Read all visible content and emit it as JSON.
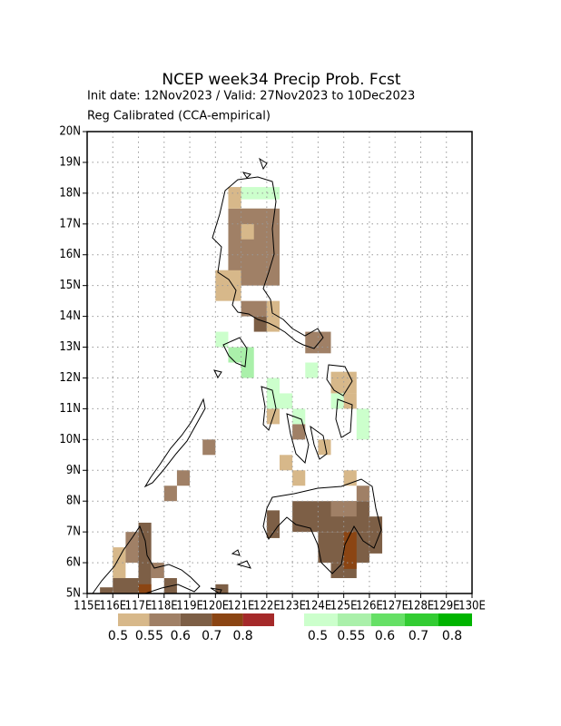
{
  "chart_data": {
    "type": "map",
    "title": "NCEP week34 Precip Prob. Fcst",
    "subtitle": [
      "Init date: 12Nov2023 / Valid: 27Nov2023 to 10Dec2023",
      "Reg Calibrated (CCA-empirical)"
    ],
    "xlim": [
      115,
      130
    ],
    "ylim": [
      5,
      20
    ],
    "xticks": [
      {
        "value": 115,
        "label": "115E"
      },
      {
        "value": 116,
        "label": "116E"
      },
      {
        "value": 117,
        "label": "117E"
      },
      {
        "value": 118,
        "label": "118E"
      },
      {
        "value": 119,
        "label": "119E"
      },
      {
        "value": 120,
        "label": "120E"
      },
      {
        "value": 121,
        "label": "121E"
      },
      {
        "value": 122,
        "label": "122E"
      },
      {
        "value": 123,
        "label": "123E"
      },
      {
        "value": 124,
        "label": "124E"
      },
      {
        "value": 125,
        "label": "125E"
      },
      {
        "value": 126,
        "label": "126E"
      },
      {
        "value": 127,
        "label": "127E"
      },
      {
        "value": 128,
        "label": "128E"
      },
      {
        "value": 129,
        "label": "129E"
      },
      {
        "value": 130,
        "label": "130E"
      }
    ],
    "yticks": [
      {
        "value": 5,
        "label": "5N"
      },
      {
        "value": 6,
        "label": "6N"
      },
      {
        "value": 7,
        "label": "7N"
      },
      {
        "value": 8,
        "label": "8N"
      },
      {
        "value": 9,
        "label": "9N"
      },
      {
        "value": 10,
        "label": "10N"
      },
      {
        "value": 11,
        "label": "11N"
      },
      {
        "value": 12,
        "label": "12N"
      },
      {
        "value": 13,
        "label": "13N"
      },
      {
        "value": 14,
        "label": "14N"
      },
      {
        "value": 15,
        "label": "15N"
      },
      {
        "value": 16,
        "label": "16N"
      },
      {
        "value": 17,
        "label": "17N"
      },
      {
        "value": 18,
        "label": "18N"
      },
      {
        "value": 19,
        "label": "19N"
      },
      {
        "value": 20,
        "label": "20N"
      }
    ],
    "grid": true,
    "levels": [
      0.5,
      0.55,
      0.6,
      0.7,
      0.8
    ],
    "below_colors": [
      "#d7b88a",
      "#a08066",
      "#7d5f46",
      "#8b4513",
      "#a52a2a"
    ],
    "above_colors": [
      "#ccffcc",
      "#aaf0aa",
      "#66e066",
      "#33cc33",
      "#00b400"
    ],
    "below_cells": [
      [
        120.5,
        15.0,
        122.5,
        17.5,
        0.57
      ],
      [
        120.5,
        17.5,
        121.0,
        18.2,
        0.52
      ],
      [
        121.0,
        16.5,
        121.5,
        17.0,
        0.52
      ],
      [
        121.0,
        17.0,
        122.0,
        17.5,
        0.57
      ],
      [
        120.0,
        14.5,
        121.0,
        15.5,
        0.52
      ],
      [
        120.5,
        15.5,
        121.0,
        16.0,
        0.57
      ],
      [
        121.0,
        14.0,
        122.0,
        14.5,
        0.57
      ],
      [
        121.5,
        13.5,
        122.0,
        14.0,
        0.62
      ],
      [
        122.0,
        13.5,
        122.5,
        14.5,
        0.52
      ],
      [
        123.5,
        12.8,
        124.5,
        13.5,
        0.57
      ],
      [
        124.5,
        11.5,
        125.5,
        12.2,
        0.52
      ],
      [
        125.0,
        11.0,
        125.5,
        11.5,
        0.52
      ],
      [
        122.0,
        10.5,
        122.5,
        11.0,
        0.52
      ],
      [
        123.0,
        10.0,
        123.5,
        10.5,
        0.57
      ],
      [
        122.5,
        9.0,
        123.0,
        9.5,
        0.52
      ],
      [
        123.0,
        8.5,
        123.5,
        9.0,
        0.52
      ],
      [
        124.0,
        9.5,
        124.5,
        10.0,
        0.52
      ],
      [
        125.0,
        8.5,
        125.5,
        9.0,
        0.52
      ],
      [
        125.5,
        8.0,
        126.0,
        8.5,
        0.57
      ],
      [
        123.0,
        7.0,
        126.0,
        8.0,
        0.62
      ],
      [
        124.0,
        6.0,
        126.0,
        7.0,
        0.62
      ],
      [
        124.5,
        5.5,
        125.5,
        6.0,
        0.62
      ],
      [
        124.5,
        7.5,
        125.5,
        8.0,
        0.57
      ],
      [
        125.0,
        5.8,
        125.5,
        7.0,
        0.72
      ],
      [
        122.0,
        6.8,
        122.5,
        7.7,
        0.62
      ],
      [
        126.0,
        6.3,
        126.5,
        7.5,
        0.62
      ],
      [
        119.5,
        9.5,
        120.0,
        10.0,
        0.57
      ],
      [
        118.5,
        8.5,
        119.0,
        9.0,
        0.57
      ],
      [
        118.0,
        8.0,
        118.5,
        8.5,
        0.57
      ],
      [
        116.0,
        5.5,
        116.5,
        6.5,
        0.52
      ],
      [
        116.5,
        6.0,
        117.0,
        7.0,
        0.57
      ],
      [
        117.0,
        5.0,
        117.5,
        7.3,
        0.62
      ],
      [
        117.0,
        5.0,
        117.5,
        5.3,
        0.72
      ],
      [
        117.5,
        5.5,
        118.0,
        6.0,
        0.57
      ],
      [
        118.0,
        5.0,
        118.5,
        5.5,
        0.62
      ],
      [
        116.0,
        5.0,
        117.0,
        5.5,
        0.62
      ],
      [
        115.5,
        5.0,
        116.0,
        5.2,
        0.62
      ],
      [
        120.0,
        5.0,
        120.5,
        5.3,
        0.62
      ]
    ],
    "above_cells": [
      [
        121.0,
        17.8,
        122.5,
        18.2,
        0.52
      ],
      [
        120.0,
        13.0,
        120.5,
        13.5,
        0.52
      ],
      [
        120.5,
        12.5,
        121.0,
        13.0,
        0.57
      ],
      [
        121.0,
        12.0,
        121.5,
        13.0,
        0.57
      ],
      [
        122.0,
        11.0,
        122.5,
        12.0,
        0.52
      ],
      [
        122.5,
        11.0,
        123.0,
        11.5,
        0.52
      ],
      [
        123.0,
        10.5,
        123.5,
        11.0,
        0.52
      ],
      [
        123.5,
        12.0,
        124.0,
        12.5,
        0.52
      ],
      [
        124.5,
        11.0,
        125.0,
        11.5,
        0.52
      ],
      [
        125.5,
        10.0,
        126.0,
        11.0,
        0.52
      ]
    ]
  }
}
